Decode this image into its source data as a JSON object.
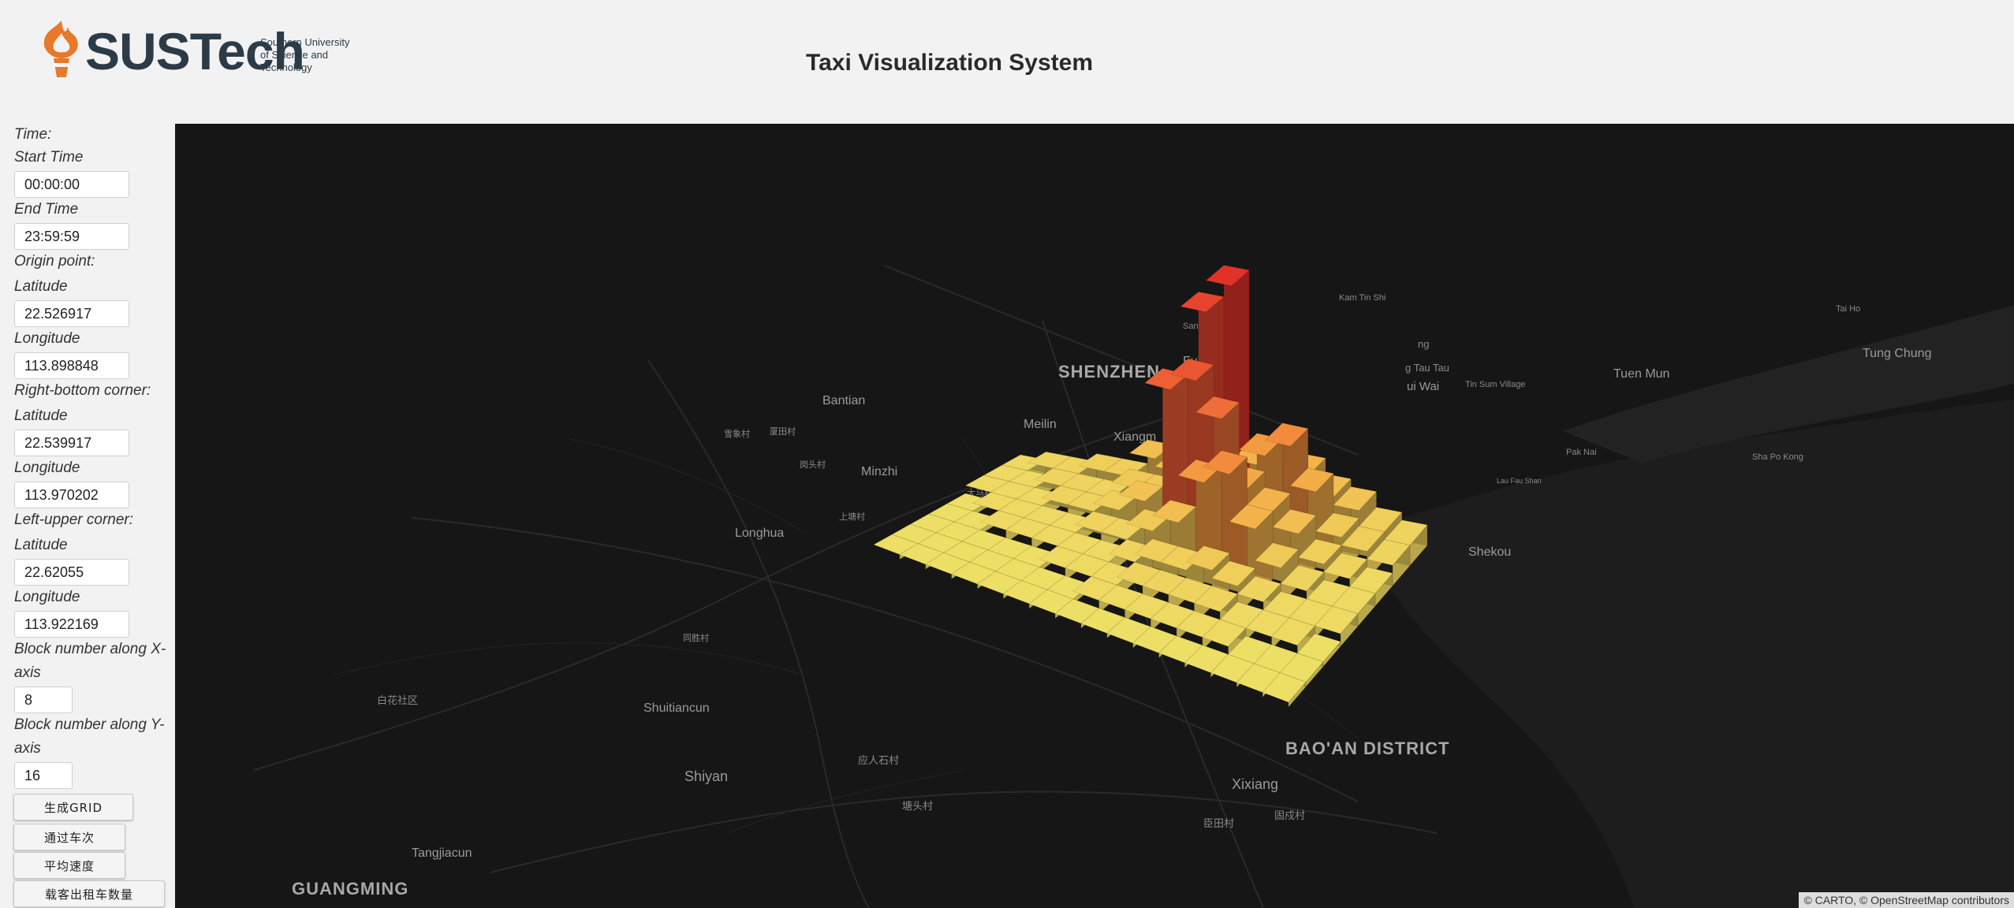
{
  "header": {
    "logo_text": "SUSTech",
    "logo_subtitle": [
      "Southern University",
      "of Science and",
      "Technology"
    ],
    "title": "Taxi Visualization System"
  },
  "sidebar": {
    "time_label": "Time:",
    "start_time_label": "Start Time",
    "start_time_value": "00:00:00",
    "end_time_label": "End Time",
    "end_time_value": "23:59:59",
    "origin_label": "Origin point:",
    "origin_lat_label": "Latitude",
    "origin_lat_value": "22.526917",
    "origin_lon_label": "Longitude",
    "origin_lon_value": "113.898848",
    "rb_label": "Right-bottom corner:",
    "rb_lat_label": "Latitude",
    "rb_lat_value": "22.539917",
    "rb_lon_label": "Longitude",
    "rb_lon_value": "113.970202",
    "lu_label": "Left-upper corner:",
    "lu_lat_label": "Latitude",
    "lu_lat_value": "22.62055",
    "lu_lon_label": "Longitude",
    "lu_lon_value": "113.922169",
    "bx_label_1": "Block number along X-",
    "bx_label_2": "axis",
    "bx_value": "8",
    "by_label_1": "Block number along Y-",
    "by_label_2": "axis",
    "by_value": "16",
    "buttons": {
      "grid": "生成GRID",
      "passes": "通过车次",
      "speed": "平均速度",
      "passenger": "载客出租车数量"
    }
  },
  "map": {
    "places": {
      "shenzhen": "SHENZHEN",
      "bao_an": "BAO'AN DISTRICT",
      "guangming": "GUANGMING",
      "bantian": "Bantian",
      "meilin": "Meilin",
      "minzhi": "Minzhi",
      "longhua": "Longhua",
      "fubao": "Fubao",
      "xiangmi": "Xiangm",
      "shekou": "Shekou",
      "shiyan": "Shiyan",
      "shuitiancun": "Shuitiancun",
      "xixiang": "Xixiang",
      "tangjiacun": "Tangjiacun",
      "tuen_mun": "Tuen Mun",
      "tung_chung": "Tung Chung",
      "pak_nai": "Pak Nai",
      "sha_po_kong": "Sha Po Kong",
      "tin_sum_village": "Tin Sum Village",
      "kam_tin_shi": "Kam Tin Shi",
      "san_tin": "San Tin",
      "tai_ho": "Tai Ho",
      "lau_fau_shan": "Lau Fau Shan",
      "tau_tau": "g Tau Tau",
      "ui_wai": "ui Wai",
      "ng": "ng",
      "xuexiang": "雪象村",
      "xiatian": "厦田村",
      "gangtou": "岗头村",
      "dalang": "大马村",
      "shangtang": "上塘村",
      "tongsheng": "同胜村",
      "baihuashe": "白花社区",
      "yingrenshi": "应人石村",
      "wanfeng": "塘头村",
      "jiuwei": "臣田村",
      "xixiang_village": "固戍村"
    },
    "attribution": "© CARTO, © OpenStreetMap contributors"
  },
  "grid_values": [
    [
      0,
      0,
      0,
      0,
      0,
      1,
      1,
      1
    ],
    [
      0,
      0,
      0,
      0,
      1,
      1,
      1,
      2
    ],
    [
      0,
      0,
      0,
      1,
      1,
      1,
      2,
      2
    ],
    [
      0,
      0,
      0,
      1,
      1,
      2,
      2,
      3
    ],
    [
      0,
      0,
      0,
      1,
      1,
      2,
      2,
      3
    ],
    [
      0,
      0,
      1,
      1,
      2,
      3,
      4,
      6
    ],
    [
      0,
      0,
      1,
      1,
      2,
      5,
      4,
      5
    ],
    [
      0,
      1,
      1,
      2,
      4,
      20,
      12,
      26
    ],
    [
      0,
      1,
      2,
      3,
      6,
      22,
      8,
      30
    ],
    [
      0,
      1,
      2,
      3,
      12,
      18,
      7,
      8
    ],
    [
      0,
      1,
      2,
      4,
      14,
      10,
      12,
      9
    ],
    [
      0,
      1,
      2,
      3,
      8,
      8,
      14,
      8
    ],
    [
      0,
      1,
      1,
      2,
      4,
      6,
      9,
      6
    ],
    [
      0,
      0,
      1,
      1,
      2,
      3,
      4,
      5
    ],
    [
      0,
      0,
      1,
      1,
      1,
      2,
      3,
      3
    ],
    [
      0,
      0,
      0,
      1,
      1,
      1,
      2,
      2
    ]
  ]
}
